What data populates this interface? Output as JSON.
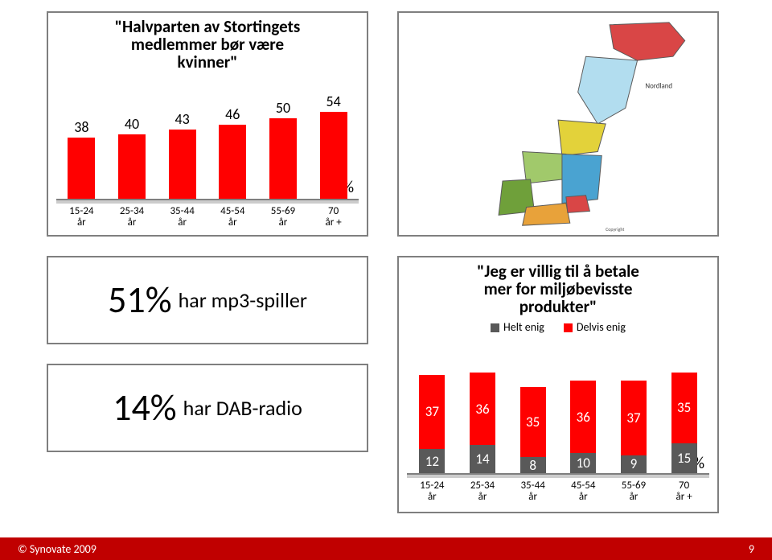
{
  "topLeftChart": {
    "type": "bar",
    "title_lines": [
      "\"Halvparten av Stortingets",
      "medlemmer bør være",
      "kvinner\""
    ],
    "title_fontsize": 21,
    "title_fontweight": "bold",
    "categories": [
      "15-24 år",
      "25-34 år",
      "35-44 år",
      "45-54 år",
      "55-69 år",
      "70 år +"
    ],
    "values": [
      38,
      40,
      43,
      46,
      50,
      54
    ],
    "bar_color": "#ff0000",
    "value_label_fontsize": 18,
    "xlabel_fontsize": 13,
    "ylim": [
      0,
      60
    ],
    "percent_label": "%",
    "axis_color": "#7f7f7f",
    "base_color": "#cccccc",
    "background_color": "#ffffff"
  },
  "mapPanel": {
    "type": "map",
    "region": "Norway",
    "background_color": "#e8f4fb",
    "outline_color": "#5a5a5a",
    "region_colors": [
      "#d94646",
      "#4aa3d1",
      "#e3d23a",
      "#a1c96b",
      "#6fa03a",
      "#b2ddef",
      "#e8a23a"
    ],
    "copyright_text": "Copyright"
  },
  "statMp3": {
    "big_value": "51%",
    "big_fontsize": 46,
    "rest_text": "har mp3-spiller",
    "rest_fontsize": 26
  },
  "statDab": {
    "big_value": "14%",
    "big_fontsize": 46,
    "rest_text": "har DAB-radio",
    "rest_fontsize": 26
  },
  "bottomRightChart": {
    "type": "stacked-bar",
    "title_lines": [
      "\"Jeg er villig til å betale",
      "mer for miljøbevisste",
      "produkter\""
    ],
    "title_fontsize": 21,
    "title_fontweight": "bold",
    "legend": [
      {
        "label": "Helt enig",
        "color": "#595959"
      },
      {
        "label": "Delvis enig",
        "color": "#ff0000"
      }
    ],
    "categories": [
      "15-24 år",
      "25-34 år",
      "35-44 år",
      "45-54 år",
      "55-69 år",
      "70 år +"
    ],
    "series": {
      "helt_enig": [
        12,
        14,
        8,
        10,
        9,
        15
      ],
      "delvis_enig": [
        37,
        36,
        35,
        36,
        37,
        35
      ]
    },
    "colors": {
      "helt_enig": "#595959",
      "delvis_enig": "#ff0000"
    },
    "value_label_fontsize": 17,
    "value_label_color": "#ffffff",
    "xlabel_fontsize": 13,
    "ylim": [
      0,
      60
    ],
    "percent_label": "%",
    "axis_color": "#7f7f7f",
    "base_color": "#cccccc",
    "background_color": "#ffffff"
  },
  "footer": {
    "left_text": "© Synovate 2009",
    "right_text": "9",
    "background_color": "#c00000",
    "text_color": "#ffffff",
    "fontsize": 14
  }
}
